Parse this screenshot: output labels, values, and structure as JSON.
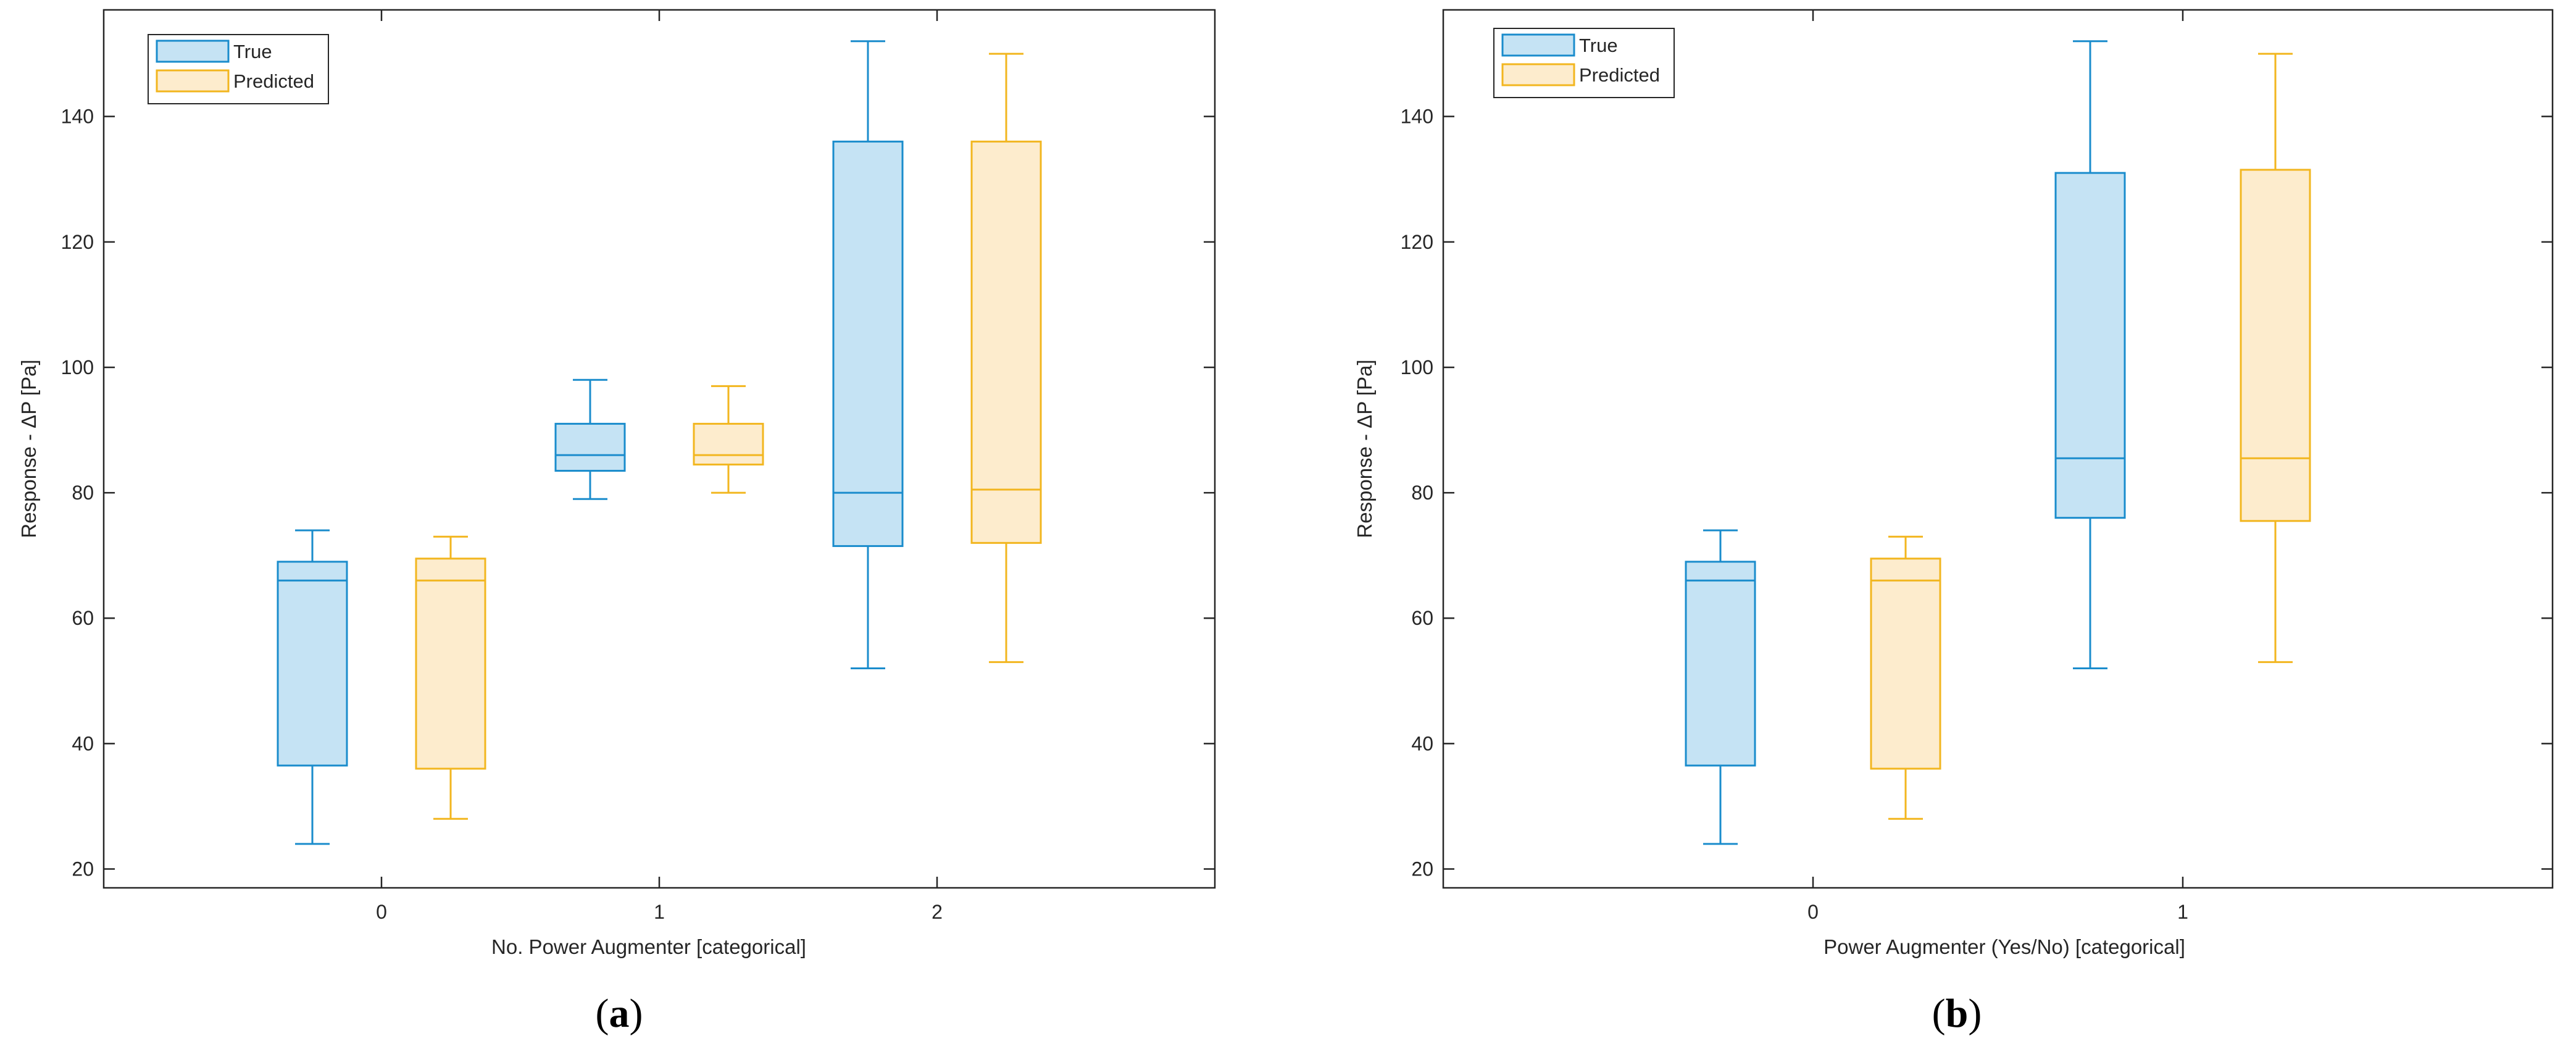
{
  "figure": {
    "captions": [
      {
        "open": "(",
        "letter": "a",
        "close": ")"
      },
      {
        "open": "(",
        "letter": "b",
        "close": ")"
      }
    ]
  },
  "chart_data": [
    {
      "type": "box",
      "panel": "a",
      "xlabel": "No. Power Augmenter [categorical]",
      "ylabel": "Response - ΔP [Pa]",
      "ylim": [
        17,
        157
      ],
      "yticks": [
        20,
        40,
        60,
        80,
        100,
        120,
        140
      ],
      "grid": false,
      "legend_position": "top-left",
      "legend": [
        {
          "name": "True",
          "fill": "#c5e3f4",
          "stroke": "#1a8ccc"
        },
        {
          "name": "Predicted",
          "fill": "#fdeccd",
          "stroke": "#f2b61f"
        }
      ],
      "categories": [
        "0",
        "1",
        "2"
      ],
      "series": [
        {
          "name": "True",
          "boxes": [
            {
              "min": 24,
              "q1": 36.5,
              "median": 66,
              "q3": 69,
              "max": 74
            },
            {
              "min": 79,
              "q1": 83.5,
              "median": 86,
              "q3": 91,
              "max": 98
            },
            {
              "min": 52,
              "q1": 71.5,
              "median": 80,
              "q3": 136,
              "max": 152
            }
          ]
        },
        {
          "name": "Predicted",
          "boxes": [
            {
              "min": 28,
              "q1": 36,
              "median": 66,
              "q3": 69.5,
              "max": 73
            },
            {
              "min": 80,
              "q1": 84.5,
              "median": 86,
              "q3": 91,
              "max": 97
            },
            {
              "min": 53,
              "q1": 72,
              "median": 80.5,
              "q3": 136,
              "max": 150
            }
          ]
        }
      ]
    },
    {
      "type": "box",
      "panel": "b",
      "xlabel": "Power Augmenter (Yes/No) [categorical]",
      "ylabel": "Response - ΔP [Pa]",
      "ylim": [
        17,
        157
      ],
      "yticks": [
        20,
        40,
        60,
        80,
        100,
        120,
        140
      ],
      "grid": false,
      "legend_position": "top-left",
      "legend": [
        {
          "name": "True",
          "fill": "#c5e3f4",
          "stroke": "#1a8ccc"
        },
        {
          "name": "Predicted",
          "fill": "#fdeccd",
          "stroke": "#f2b61f"
        }
      ],
      "categories": [
        "0",
        "1"
      ],
      "series": [
        {
          "name": "True",
          "boxes": [
            {
              "min": 24,
              "q1": 36.5,
              "median": 66,
              "q3": 69,
              "max": 74
            },
            {
              "min": 52,
              "q1": 76,
              "median": 85.5,
              "q3": 131,
              "max": 152
            }
          ]
        },
        {
          "name": "Predicted",
          "boxes": [
            {
              "min": 28,
              "q1": 36,
              "median": 66,
              "q3": 69.5,
              "max": 73
            },
            {
              "min": 53,
              "q1": 75.5,
              "median": 85.5,
              "q3": 131.5,
              "max": 150
            }
          ]
        }
      ]
    }
  ]
}
